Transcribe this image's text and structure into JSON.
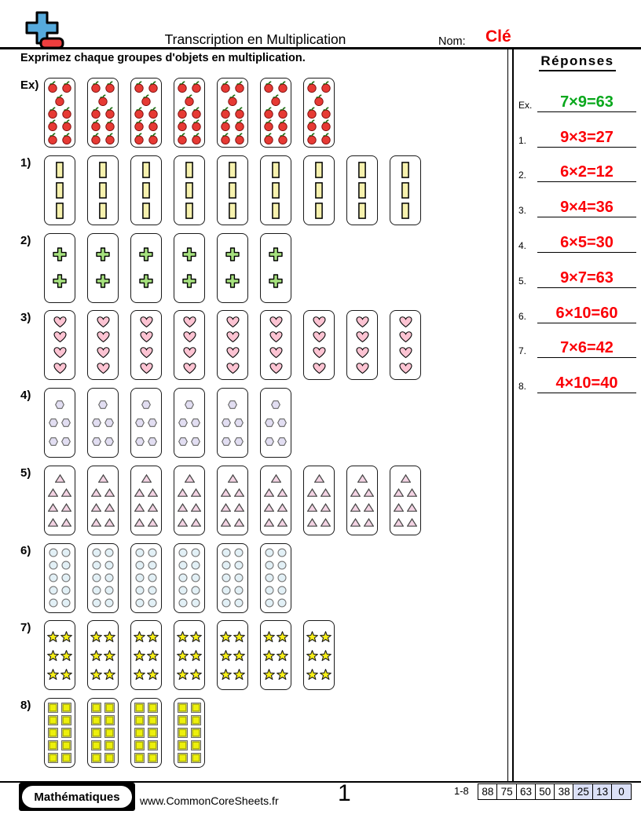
{
  "header": {
    "title": "Transcription en Multiplication",
    "name_label": "Nom:",
    "name_value": "Clé"
  },
  "instruction": "Exprimez chaque groupes d'objets en multiplication.",
  "answers": {
    "title": "Réponses",
    "items": [
      {
        "label": "Ex.",
        "value": "7×9=63",
        "color": "#09a81c"
      },
      {
        "label": "1.",
        "value": "9×3=27",
        "color": "#fb0007"
      },
      {
        "label": "2.",
        "value": "6×2=12",
        "color": "#fb0007"
      },
      {
        "label": "3.",
        "value": "9×4=36",
        "color": "#fb0007"
      },
      {
        "label": "4.",
        "value": "6×5=30",
        "color": "#fb0007"
      },
      {
        "label": "5.",
        "value": "9×7=63",
        "color": "#fb0007"
      },
      {
        "label": "6.",
        "value": "6×10=60",
        "color": "#fb0007"
      },
      {
        "label": "7.",
        "value": "7×6=42",
        "color": "#fb0007"
      },
      {
        "label": "8.",
        "value": "4×10=40",
        "color": "#fb0007"
      }
    ]
  },
  "problems": [
    {
      "label": "Ex)",
      "shape": "apple",
      "groups": 7,
      "per_group": 9,
      "rows": [
        2,
        1,
        2,
        2,
        2
      ]
    },
    {
      "label": "1)",
      "shape": "rectangle",
      "groups": 9,
      "per_group": 3,
      "rows": [
        1,
        1,
        1
      ]
    },
    {
      "label": "2)",
      "shape": "plus",
      "groups": 6,
      "per_group": 2,
      "rows": [
        1,
        1
      ]
    },
    {
      "label": "3)",
      "shape": "heart",
      "groups": 9,
      "per_group": 4,
      "rows": [
        1,
        1,
        1,
        1
      ]
    },
    {
      "label": "4)",
      "shape": "hexagon",
      "groups": 6,
      "per_group": 5,
      "rows": [
        1,
        2,
        2
      ]
    },
    {
      "label": "5)",
      "shape": "triangle",
      "groups": 9,
      "per_group": 7,
      "rows": [
        1,
        2,
        2,
        2
      ]
    },
    {
      "label": "6)",
      "shape": "circle",
      "groups": 6,
      "per_group": 10,
      "rows": [
        2,
        2,
        2,
        2,
        2
      ]
    },
    {
      "label": "7)",
      "shape": "star",
      "groups": 7,
      "per_group": 6,
      "rows": [
        2,
        2,
        2
      ]
    },
    {
      "label": "8)",
      "shape": "square",
      "groups": 4,
      "per_group": 10,
      "rows": [
        2,
        2,
        2,
        2,
        2
      ]
    }
  ],
  "shape_colors": {
    "apple": {
      "fill": "#e63a34",
      "stroke": "#7e0d0d",
      "stem": "#1d6e14"
    },
    "rectangle": {
      "fill": "#f7f2ae",
      "stroke": "#000000"
    },
    "plus": {
      "fill": "#a6e17e",
      "stroke": "#000000"
    },
    "heart": {
      "fill": "#fcc3d2",
      "stroke": "#000000"
    },
    "hexagon": {
      "fill": "#e2def2",
      "stroke": "#666666"
    },
    "triangle": {
      "fill": "#f3d3e3",
      "stroke": "#444444"
    },
    "circle": {
      "fill": "#e2f0f6",
      "stroke": "#777777"
    },
    "star": {
      "fill": "#f7ef17",
      "stroke": "#1a1a1a"
    },
    "square": {
      "fill": "#edf00c",
      "stroke": "#a9ad00",
      "outer": "#666666"
    }
  },
  "logo_colors": {
    "plus": "#56aadc",
    "minus": "#ee3e3e"
  },
  "footer": {
    "badge": "Mathématiques",
    "website": "www.CommonCoreSheets.fr",
    "page_number": "1",
    "score_label": "1-8",
    "scores": [
      "88",
      "75",
      "63",
      "50",
      "38",
      "25",
      "13",
      "0"
    ],
    "score_highlight_start": 5,
    "score_highlight_color": "#dbe0f7"
  }
}
